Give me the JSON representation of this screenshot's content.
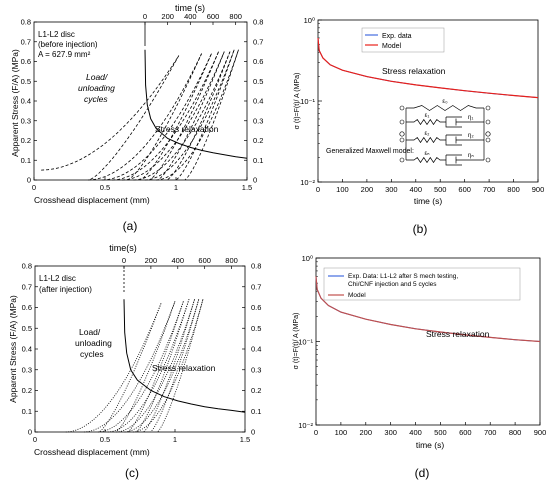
{
  "chart_data": [
    {
      "id": "a",
      "type": "line",
      "panel_label": "(a)",
      "xlabel": "Crosshead displacement (mm)",
      "x_ticks": [
        "0",
        "0.5",
        "1",
        "1.5"
      ],
      "xlim": [
        0,
        1.5
      ],
      "ylabel_left": "Apparent Stress (F/A) (MPa)",
      "ylabel_right": "",
      "y_ticks": [
        "0",
        "0.1",
        "0.2",
        "0.3",
        "0.4",
        "0.5",
        "0.6",
        "0.7",
        "0.8"
      ],
      "ylim": [
        0,
        0.8
      ],
      "top_xlabel": "time (s)",
      "top_ticks": [
        "0",
        "200",
        "400",
        "600",
        "800"
      ],
      "top_xlim": [
        0,
        900
      ],
      "annotations": [
        "L1-L2 disc",
        "(before injection)",
        "A = 627.9 mm²",
        "Load/",
        "unloading",
        "cycles",
        "Stress relaxation"
      ],
      "series": [
        {
          "style": "dashed",
          "cycles": [
            {
              "x0": 0.05,
              "x1": 1.02,
              "ypeak": 0.63,
              "ystart": 0.05
            },
            {
              "x0": 0.38,
              "x1": 1.18,
              "ypeak": 0.64,
              "ystart": 0.0
            },
            {
              "x0": 0.48,
              "x1": 1.25,
              "ypeak": 0.64,
              "ystart": 0.0
            },
            {
              "x0": 0.55,
              "x1": 1.3,
              "ypeak": 0.65,
              "ystart": 0.0
            },
            {
              "x0": 0.62,
              "x1": 1.34,
              "ypeak": 0.65,
              "ystart": 0.0
            },
            {
              "x0": 0.7,
              "x1": 1.38,
              "ypeak": 0.65,
              "ystart": 0.0
            },
            {
              "x0": 0.78,
              "x1": 1.41,
              "ypeak": 0.66,
              "ystart": 0.0
            },
            {
              "x0": 0.86,
              "x1": 1.44,
              "ypeak": 0.66,
              "ystart": 0.0
            }
          ]
        },
        {
          "style": "solid",
          "relaxation": {
            "t": [
              0,
              5,
              20,
              50,
              100,
              200,
              300,
              400,
              500,
              600,
              700,
              800,
              900
            ],
            "y": [
              0.66,
              0.48,
              0.38,
              0.31,
              0.26,
              0.21,
              0.185,
              0.165,
              0.15,
              0.138,
              0.128,
              0.118,
              0.11
            ]
          }
        }
      ]
    },
    {
      "id": "b",
      "type": "line",
      "panel_label": "(b)",
      "xlabel": "time (s)",
      "x_ticks": [
        "0",
        "100",
        "200",
        "300",
        "400",
        "500",
        "600",
        "700",
        "800",
        "900"
      ],
      "xlim": [
        0,
        900
      ],
      "ylabel": "σ (t)=F(t)/ A (MPa)",
      "y_scale": "log",
      "ylim": [
        0.01,
        1
      ],
      "y_tick_labels": [
        "10⁰",
        "10⁻¹",
        "10⁻²"
      ],
      "legend": [
        "Exp. data",
        "Model"
      ],
      "legend_colors": [
        "#1f4fd8",
        "#e8201a"
      ],
      "annotations": [
        "Stress relaxation",
        "Generalized Maxwell model:"
      ],
      "model_symbols": [
        "ε₀",
        "ε₁",
        "η₁",
        "ε₂",
        "η₂",
        "εₙ",
        "ηₙ"
      ],
      "series": [
        {
          "name": "Exp. data",
          "t": [
            0,
            5,
            20,
            50,
            100,
            200,
            300,
            400,
            500,
            600,
            700,
            800,
            900
          ],
          "y": [
            0.6,
            0.42,
            0.34,
            0.28,
            0.24,
            0.2,
            0.175,
            0.158,
            0.145,
            0.134,
            0.125,
            0.117,
            0.11
          ]
        },
        {
          "name": "Model",
          "t": [
            0,
            5,
            20,
            50,
            100,
            200,
            300,
            400,
            500,
            600,
            700,
            800,
            900
          ],
          "y": [
            0.6,
            0.42,
            0.34,
            0.28,
            0.24,
            0.2,
            0.175,
            0.158,
            0.145,
            0.134,
            0.125,
            0.117,
            0.11
          ]
        }
      ]
    },
    {
      "id": "c",
      "type": "line",
      "panel_label": "(c)",
      "xlabel": "Crosshead displacement (mm)",
      "x_ticks": [
        "0",
        "0.5",
        "1",
        "1.5"
      ],
      "xlim": [
        0,
        1.5
      ],
      "ylabel_left": "Apparent Stress  (F/A) (MPa)",
      "y_ticks": [
        "0",
        "0.1",
        "0.2",
        "0.3",
        "0.4",
        "0.5",
        "0.6",
        "0.7",
        "0.8"
      ],
      "ylim": [
        0,
        0.8
      ],
      "top_xlabel": "time(s)",
      "top_ticks": [
        "0",
        "200",
        "400",
        "600",
        "800"
      ],
      "top_xlim": [
        0,
        900
      ],
      "annotations": [
        "L1-L2 disc",
        "(after injection)",
        "Load/",
        "unloading",
        "cycles",
        "Stress relaxation"
      ],
      "series": [
        {
          "style": "dotted",
          "cycles": [
            {
              "x0": 0.22,
              "x1": 0.9,
              "ypeak": 0.62,
              "ystart": 0.0
            },
            {
              "x0": 0.35,
              "x1": 1.0,
              "ypeak": 0.63,
              "ystart": 0.0
            },
            {
              "x0": 0.45,
              "x1": 1.06,
              "ypeak": 0.63,
              "ystart": 0.0
            },
            {
              "x0": 0.52,
              "x1": 1.1,
              "ypeak": 0.64,
              "ystart": 0.0
            },
            {
              "x0": 0.58,
              "x1": 1.14,
              "ypeak": 0.64,
              "ystart": 0.0
            },
            {
              "x0": 0.64,
              "x1": 1.17,
              "ypeak": 0.64,
              "ystart": 0.0
            },
            {
              "x0": 0.7,
              "x1": 1.2,
              "ypeak": 0.64,
              "ystart": 0.0
            }
          ]
        },
        {
          "style": "solid",
          "relaxation": {
            "t": [
              0,
              5,
              20,
              50,
              100,
              200,
              300,
              400,
              500,
              600,
              700,
              800,
              900
            ],
            "y": [
              0.64,
              0.48,
              0.38,
              0.3,
              0.25,
              0.2,
              0.17,
              0.15,
              0.135,
              0.122,
              0.112,
              0.104,
              0.095
            ]
          }
        }
      ]
    },
    {
      "id": "d",
      "type": "line",
      "panel_label": "(d)",
      "xlabel": "time (s)",
      "x_ticks": [
        "0",
        "100",
        "200",
        "300",
        "400",
        "500",
        "600",
        "700",
        "800",
        "900"
      ],
      "xlim": [
        0,
        900
      ],
      "ylabel": "σ (t)=F(t)/ A (MPa)",
      "y_scale": "log",
      "ylim": [
        0.01,
        1
      ],
      "y_tick_labels": [
        "10⁰",
        "10⁻¹",
        "10⁻²"
      ],
      "legend": [
        "Exp. Data: L1-L2 after S mech testing,",
        "Chi/CNF injection and 5 cycles",
        "Model"
      ],
      "legend_colors": [
        "#1f4fd8",
        "#c0504d"
      ],
      "annotations": [
        "Stress relaxation"
      ],
      "series": [
        {
          "name": "Exp. Data: L1-L2 after S mech testing, Chi/CNF injection and 5 cycles",
          "t": [
            0,
            5,
            20,
            50,
            100,
            200,
            300,
            400,
            500,
            600,
            700,
            800,
            900
          ],
          "y": [
            0.6,
            0.42,
            0.33,
            0.27,
            0.225,
            0.185,
            0.16,
            0.142,
            0.13,
            0.12,
            0.112,
            0.105,
            0.1
          ]
        },
        {
          "name": "Model",
          "t": [
            0,
            5,
            20,
            50,
            100,
            200,
            300,
            400,
            500,
            600,
            700,
            800,
            900
          ],
          "y": [
            0.6,
            0.42,
            0.33,
            0.27,
            0.225,
            0.185,
            0.16,
            0.142,
            0.13,
            0.12,
            0.112,
            0.105,
            0.1
          ]
        }
      ]
    }
  ]
}
